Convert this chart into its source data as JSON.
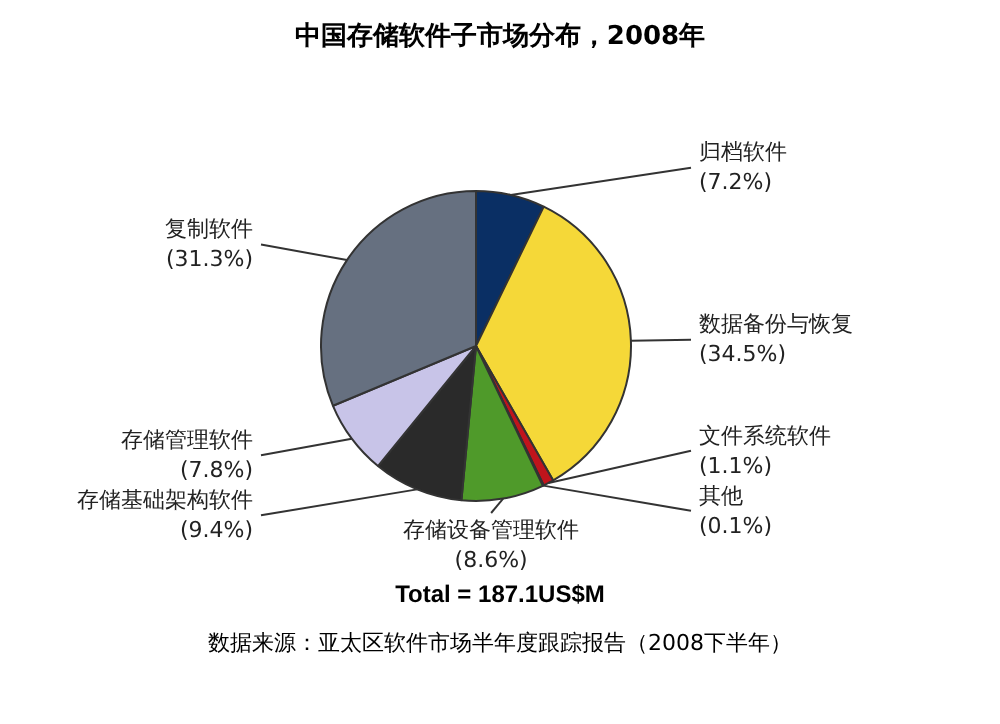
{
  "chart_data": {
    "type": "pie",
    "title": "中国存储软件子市场分布，2008年",
    "categories": [
      "归档软件",
      "数据备份与恢复",
      "文件系统软件",
      "其他",
      "存储设备管理软件",
      "存储基础架构软件",
      "存储管理软件",
      "复制软件"
    ],
    "values": [
      7.2,
      34.5,
      1.1,
      0.1,
      8.6,
      9.4,
      7.8,
      31.3
    ],
    "colors": [
      "#0a2f64",
      "#f5d838",
      "#c0141c",
      "#e8e8e8",
      "#4f9a2a",
      "#2a2a2a",
      "#c8c4e8",
      "#667080"
    ],
    "value_labels": [
      "(7.2%)",
      "(34.5%)",
      "(1.1%)",
      "(0.1%)",
      "(8.6%)",
      "(9.4%)",
      "(7.8%)",
      "(31.3%)"
    ],
    "annotations": [
      "Total = 187.1US$M",
      "数据来源：亚太区软件市场半年度跟踪报告（2008下半年）"
    ],
    "legend": false
  }
}
